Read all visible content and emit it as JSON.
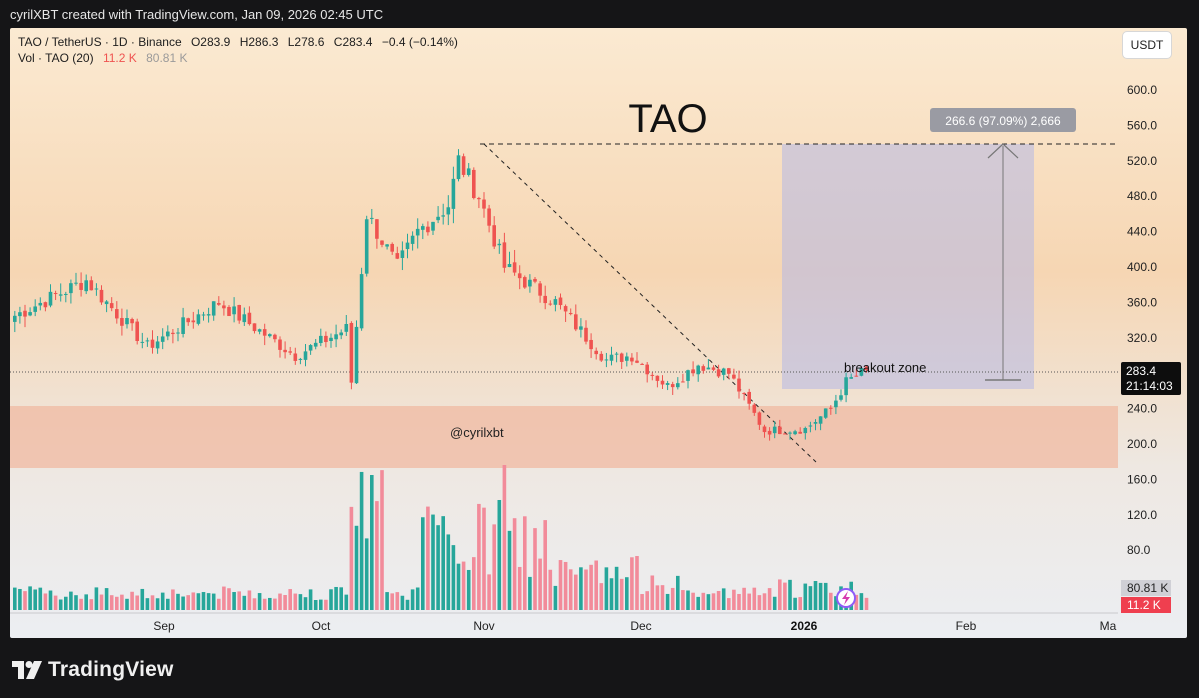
{
  "header": {
    "attribution": "cyrilXBT created with TradingView.com, Jan 09, 2026 02:45 UTC"
  },
  "legend": {
    "symbol": "TAO / TetherUS · 1D · Binance",
    "open": "O283.9",
    "high": "H286.3",
    "low": "L278.6",
    "close": "C283.4",
    "change": "−0.4 (−0.14%)",
    "volume_label": "Vol · TAO (20)",
    "volume_value": "11.2 K",
    "volume_ma": "80.81 K"
  },
  "currency_button": "USDT",
  "annotations": {
    "title": "TAO",
    "watermark": "@cyrilxbt",
    "breakout_label": "breakout zone",
    "measure_label": "266.6 (97.09%) 2,666"
  },
  "price_axis": {
    "ticks": [
      "600.0",
      "560.0",
      "520.0",
      "480.0",
      "440.0",
      "400.0",
      "360.0",
      "320.0",
      "240.0",
      "200.0",
      "160.0",
      "120.0",
      "80.0"
    ],
    "last_price": "283.4",
    "countdown": "21:14:03",
    "vol_ma_badge": "80.81 K",
    "vol_badge": "11.2 K"
  },
  "time_axis": [
    "Sep",
    "Oct",
    "Nov",
    "Dec",
    "2026",
    "Feb",
    "Ma"
  ],
  "footer": {
    "brand": "TradingView"
  },
  "colors": {
    "up": "#26a69a",
    "down": "#ef5350",
    "vol_up": "#26a69a",
    "vol_down": "#f28b9a",
    "support_zone": "#f0b9a1",
    "breakout_box": "#b4b8e6"
  },
  "chart_data": {
    "type": "candlestick",
    "symbol": "TAO / TetherUS",
    "interval": "1D",
    "exchange": "Binance",
    "ylim": [
      60,
      620
    ],
    "last_price": 283.4,
    "support_zone": [
      175,
      243
    ],
    "breakout_zone": [
      258,
      540
    ],
    "resistance_level": 540,
    "anchors": [
      {
        "date": "Aug 06",
        "price": 345
      },
      {
        "date": "Aug 20",
        "price": 385
      },
      {
        "date": "Sep 01",
        "price": 310
      },
      {
        "date": "Sep 15",
        "price": 360
      },
      {
        "date": "Sep 30",
        "price": 300
      },
      {
        "date": "Oct 10",
        "price": 330
      },
      {
        "date": "Oct 11",
        "price": 270
      },
      {
        "date": "Oct 14",
        "price": 460
      },
      {
        "date": "Oct 20",
        "price": 400
      },
      {
        "date": "Oct 24",
        "price": 440
      },
      {
        "date": "Oct 30",
        "price": 470
      },
      {
        "date": "Nov 01",
        "price": 520
      },
      {
        "date": "Nov 05",
        "price": 480
      },
      {
        "date": "Nov 10",
        "price": 400
      },
      {
        "date": "Nov 20",
        "price": 360
      },
      {
        "date": "Nov 30",
        "price": 295
      },
      {
        "date": "Dec 05",
        "price": 300
      },
      {
        "date": "Dec 12",
        "price": 265
      },
      {
        "date": "Dec 18",
        "price": 290
      },
      {
        "date": "Dec 24",
        "price": 280
      },
      {
        "date": "Dec 31",
        "price": 215
      },
      {
        "date": "Jan 08",
        "price": 217
      },
      {
        "date": "Jan 13",
        "price": 240
      },
      {
        "date": "Jan 16",
        "price": 270
      },
      {
        "date": "Jan 20",
        "price": 283.4
      }
    ]
  }
}
